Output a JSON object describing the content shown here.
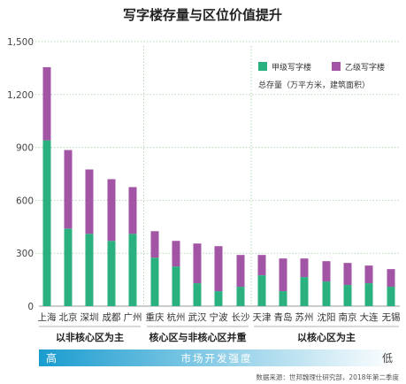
{
  "chart_data": {
    "type": "bar",
    "stacked": true,
    "title": "写字楼存量与区位价值提升",
    "ylim": [
      0,
      1500
    ],
    "yticks": [
      "0",
      "300",
      "600",
      "900",
      "1,200",
      "1,500"
    ],
    "categories": [
      "上海",
      "北京",
      "深圳",
      "成都",
      "广州",
      "重庆",
      "杭州",
      "武汉",
      "宁波",
      "长沙",
      "天津",
      "青岛",
      "苏州",
      "沈阳",
      "南京",
      "大连",
      "无锡"
    ],
    "series": [
      {
        "name": "甲级写字楼",
        "color": "#2bb07f",
        "values": [
          940,
          440,
          410,
          370,
          410,
          275,
          225,
          130,
          85,
          110,
          175,
          85,
          165,
          140,
          120,
          130,
          110
        ]
      },
      {
        "name": "乙级写字楼",
        "color": "#a355a5",
        "values": [
          415,
          445,
          365,
          350,
          265,
          150,
          145,
          225,
          255,
          180,
          115,
          185,
          105,
          115,
          125,
          100,
          100
        ]
      }
    ],
    "legend_note": "总存量（万平方米，建筑面积）",
    "legend_position": "top-right",
    "groups": [
      {
        "label": "以非核心区为主",
        "start": 0,
        "end": 4
      },
      {
        "label": "核心区与非核心区并重",
        "start": 5,
        "end": 9
      },
      {
        "label": "以核心区为主",
        "start": 10,
        "end": 16
      }
    ],
    "gradient_bar": {
      "left_label": "高",
      "center_label": "市场开发强度",
      "right_label": "低",
      "color_start": "#1a9ccf",
      "color_end": "#ffffff"
    },
    "source": "数据来源：世邦魏理仕研究部，2018年第二季度",
    "grid": true,
    "gridline_color": "#b8d8b8"
  }
}
